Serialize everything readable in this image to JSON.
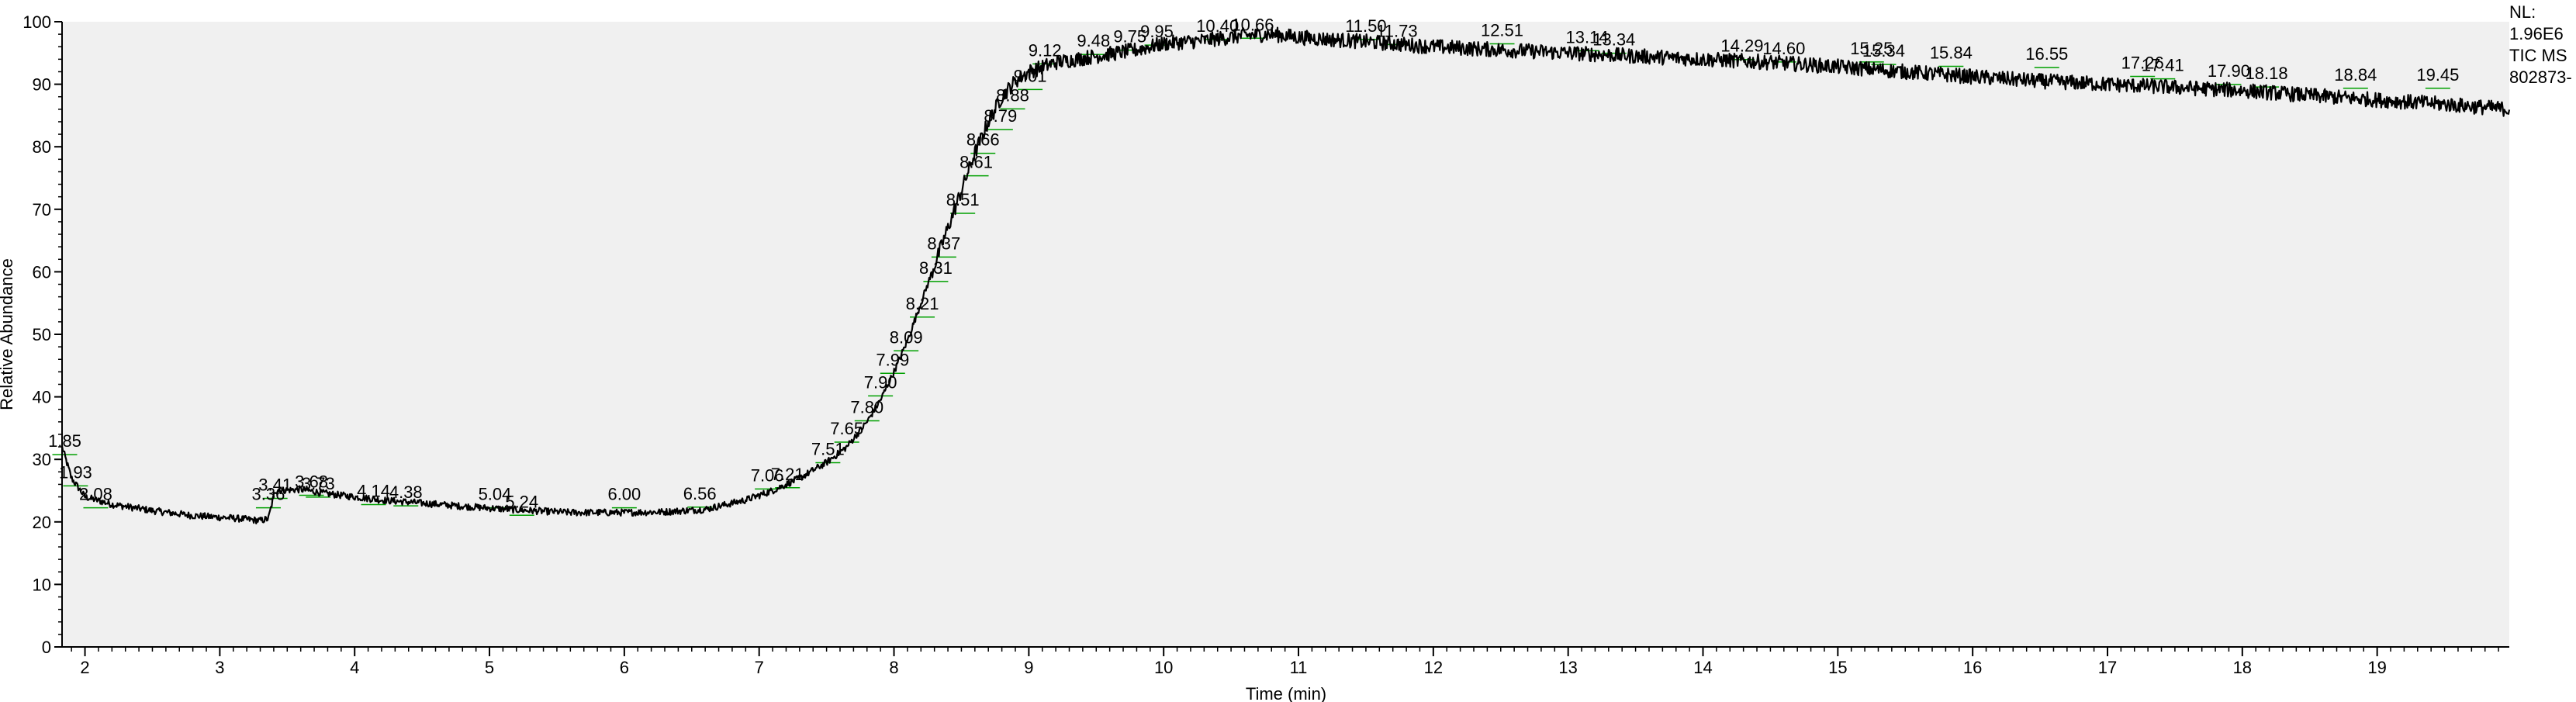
{
  "chart_data": {
    "type": "line",
    "xlabel": "Time (min)",
    "ylabel": "Relative Abundance",
    "xlim": [
      1.83,
      19.98
    ],
    "ylim": [
      0,
      100
    ],
    "x_ticks": [
      2,
      3,
      4,
      5,
      6,
      7,
      8,
      9,
      10,
      11,
      12,
      13,
      14,
      15,
      16,
      17,
      18,
      19
    ],
    "y_ticks": [
      0,
      10,
      20,
      30,
      40,
      50,
      60,
      70,
      80,
      90,
      100
    ],
    "grid": false,
    "trace_color": "#000000",
    "integration_color": "#00a000",
    "background_color": "#f0f0f0",
    "info": [
      "NL:",
      "1.96E6",
      "TIC MS",
      "802873-"
    ],
    "series": [
      {
        "points": [
          [
            1.83,
            32
          ],
          [
            1.9,
            27
          ],
          [
            2.0,
            24
          ],
          [
            2.2,
            22.8
          ],
          [
            2.5,
            21.8
          ],
          [
            2.8,
            21
          ],
          [
            3.1,
            20.6
          ],
          [
            3.3,
            20.2
          ],
          [
            3.36,
            20.5
          ],
          [
            3.41,
            25
          ],
          [
            3.6,
            25.2
          ],
          [
            3.8,
            24.5
          ],
          [
            4.0,
            24
          ],
          [
            4.2,
            23.5
          ],
          [
            4.5,
            23
          ],
          [
            4.8,
            22.5
          ],
          [
            5.0,
            22.2
          ],
          [
            5.3,
            21.8
          ],
          [
            5.6,
            21.5
          ],
          [
            6.0,
            21.5
          ],
          [
            6.3,
            21.6
          ],
          [
            6.6,
            22
          ],
          [
            6.9,
            23.5
          ],
          [
            7.1,
            25
          ],
          [
            7.3,
            27
          ],
          [
            7.5,
            29.5
          ],
          [
            7.65,
            32
          ],
          [
            7.8,
            36
          ],
          [
            7.9,
            39.5
          ],
          [
            8.0,
            44
          ],
          [
            8.1,
            49
          ],
          [
            8.2,
            55
          ],
          [
            8.3,
            61
          ],
          [
            8.4,
            67
          ],
          [
            8.5,
            73
          ],
          [
            8.6,
            79
          ],
          [
            8.7,
            84
          ],
          [
            8.8,
            88
          ],
          [
            8.9,
            90.5
          ],
          [
            9.0,
            92
          ],
          [
            9.2,
            93.5
          ],
          [
            9.5,
            94.5
          ],
          [
            9.8,
            95.5
          ],
          [
            10.0,
            96.5
          ],
          [
            10.3,
            97
          ],
          [
            10.6,
            97.8
          ],
          [
            10.8,
            98
          ],
          [
            11.0,
            97.5
          ],
          [
            11.5,
            96.8
          ],
          [
            12.0,
            96
          ],
          [
            12.5,
            95.5
          ],
          [
            13.0,
            95
          ],
          [
            13.5,
            94.5
          ],
          [
            14.0,
            94
          ],
          [
            14.5,
            93.5
          ],
          [
            15.0,
            92.8
          ],
          [
            15.5,
            92
          ],
          [
            16.0,
            91.2
          ],
          [
            16.5,
            90.5
          ],
          [
            17.0,
            90
          ],
          [
            17.5,
            89.5
          ],
          [
            18.0,
            89
          ],
          [
            18.5,
            88.2
          ],
          [
            19.0,
            87.5
          ],
          [
            19.5,
            86.8
          ],
          [
            19.98,
            86
          ]
        ]
      }
    ],
    "peaks": [
      {
        "label": "1.85",
        "x": 1.85,
        "y": 32
      },
      {
        "label": "1.93",
        "x": 1.93,
        "y": 27
      },
      {
        "label": "2.08",
        "x": 2.08,
        "y": 23.5
      },
      {
        "label": "3.36",
        "x": 3.36,
        "y": 23.5
      },
      {
        "label": "3.41",
        "x": 3.41,
        "y": 25
      },
      {
        "label": "3.68",
        "x": 3.68,
        "y": 25.5
      },
      {
        "label": "3.73",
        "x": 3.73,
        "y": 25.2
      },
      {
        "label": "4.14",
        "x": 4.14,
        "y": 24
      },
      {
        "label": "4.38",
        "x": 4.38,
        "y": 23.8
      },
      {
        "label": "5.04",
        "x": 5.04,
        "y": 23.5
      },
      {
        "label": "5.24",
        "x": 5.24,
        "y": 22.3
      },
      {
        "label": "6.00",
        "x": 6.0,
        "y": 23.5
      },
      {
        "label": "6.56",
        "x": 6.56,
        "y": 23.6
      },
      {
        "label": "7.06",
        "x": 7.06,
        "y": 26.5
      },
      {
        "label": "7.21",
        "x": 7.21,
        "y": 26.7
      },
      {
        "label": "7.51",
        "x": 7.51,
        "y": 30.7
      },
      {
        "label": "7.65",
        "x": 7.65,
        "y": 34
      },
      {
        "label": "7.80",
        "x": 7.8,
        "y": 37.4
      },
      {
        "label": "7.90",
        "x": 7.9,
        "y": 41.4
      },
      {
        "label": "7.99",
        "x": 7.99,
        "y": 45
      },
      {
        "label": "8.09",
        "x": 8.09,
        "y": 48.6
      },
      {
        "label": "8.21",
        "x": 8.21,
        "y": 54
      },
      {
        "label": "8.31",
        "x": 8.31,
        "y": 59.7
      },
      {
        "label": "8.37",
        "x": 8.37,
        "y": 63.6
      },
      {
        "label": "8.51",
        "x": 8.51,
        "y": 70.6
      },
      {
        "label": "8.61",
        "x": 8.61,
        "y": 76.6
      },
      {
        "label": "8.66",
        "x": 8.66,
        "y": 80.2
      },
      {
        "label": "8.79",
        "x": 8.79,
        "y": 84
      },
      {
        "label": "8.88",
        "x": 8.88,
        "y": 87.3
      },
      {
        "label": "9.01",
        "x": 9.01,
        "y": 90.4
      },
      {
        "label": "9.12",
        "x": 9.12,
        "y": 94.5
      },
      {
        "label": "9.48",
        "x": 9.48,
        "y": 96
      },
      {
        "label": "9.75",
        "x": 9.75,
        "y": 96.7
      },
      {
        "label": "9.95",
        "x": 9.95,
        "y": 97.5
      },
      {
        "label": "10.40",
        "x": 10.4,
        "y": 98.4
      },
      {
        "label": "10.66",
        "x": 10.66,
        "y": 98.6
      },
      {
        "label": "11.50",
        "x": 11.5,
        "y": 98.4
      },
      {
        "label": "11.73",
        "x": 11.73,
        "y": 97.6
      },
      {
        "label": "12.51",
        "x": 12.51,
        "y": 97.7
      },
      {
        "label": "13.14",
        "x": 13.14,
        "y": 96.6
      },
      {
        "label": "13.34",
        "x": 13.34,
        "y": 96.2
      },
      {
        "label": "14.29",
        "x": 14.29,
        "y": 95.2
      },
      {
        "label": "14.60",
        "x": 14.6,
        "y": 94.8
      },
      {
        "label": "15.25",
        "x": 15.25,
        "y": 94.8
      },
      {
        "label": "15.34",
        "x": 15.34,
        "y": 94.4
      },
      {
        "label": "15.84",
        "x": 15.84,
        "y": 94.1
      },
      {
        "label": "16.55",
        "x": 16.55,
        "y": 93.9
      },
      {
        "label": "17.26",
        "x": 17.26,
        "y": 92.5
      },
      {
        "label": "17.41",
        "x": 17.41,
        "y": 92.1
      },
      {
        "label": "17.90",
        "x": 17.9,
        "y": 91.2
      },
      {
        "label": "18.18",
        "x": 18.18,
        "y": 90.8
      },
      {
        "label": "18.84",
        "x": 18.84,
        "y": 90.6
      },
      {
        "label": "19.45",
        "x": 19.45,
        "y": 90.6
      }
    ]
  }
}
